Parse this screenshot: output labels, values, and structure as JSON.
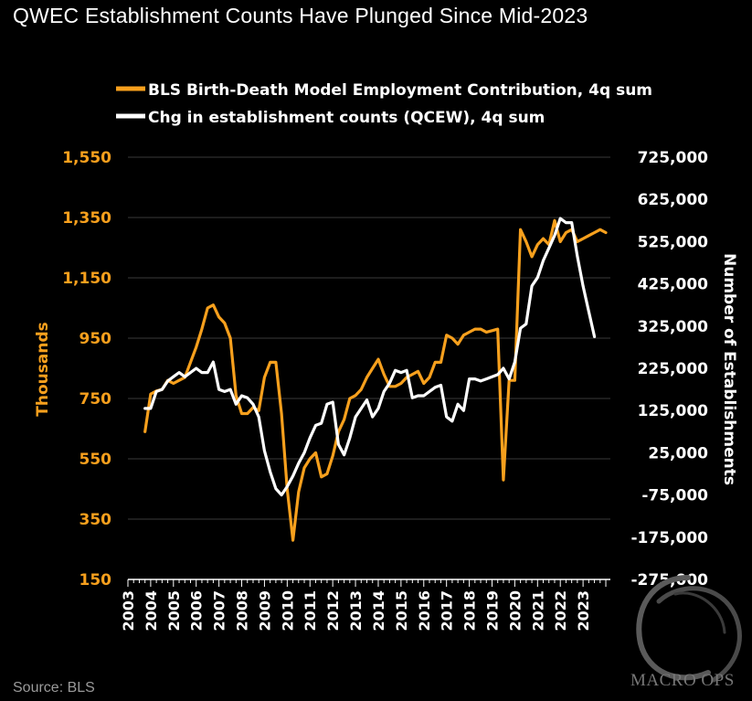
{
  "title": "QWEC Establishment Counts Have Plunged Since Mid-2023",
  "source": "Source: BLS",
  "watermark": "MACRO OPS",
  "colors": {
    "background": "#000000",
    "orange": "#f7a01d",
    "white": "#ffffff",
    "grid": "#3a3a3a"
  },
  "chart_data": {
    "type": "line",
    "title": "QWEC Establishment Counts Have Plunged Since Mid-2023",
    "legend_position": "top",
    "grid": true,
    "x_tick_labels": [
      "2003",
      "2004",
      "2005",
      "2006",
      "2007",
      "2008",
      "2009",
      "2010",
      "2011",
      "2012",
      "2013",
      "2014",
      "2015",
      "2016",
      "2017",
      "2018",
      "2019",
      "2020",
      "2021",
      "2022",
      "2023"
    ],
    "x_range": [
      2003,
      2024.2
    ],
    "y_left": {
      "label": "Thousands",
      "lim": [
        150,
        1550
      ],
      "ticks": [
        150,
        350,
        550,
        750,
        950,
        1150,
        1350,
        1550
      ],
      "tick_labels": [
        "150",
        "350",
        "550",
        "750",
        "950",
        "1,150",
        "1,350",
        "1,550"
      ]
    },
    "y_right": {
      "label": "Number of Establishments",
      "lim": [
        -275000,
        725000
      ],
      "ticks": [
        -275000,
        -175000,
        -75000,
        25000,
        125000,
        225000,
        325000,
        425000,
        525000,
        625000,
        725000
      ],
      "tick_labels": [
        "-275,000",
        "-175,000",
        "-75,000",
        "25,000",
        "125,000",
        "225,000",
        "325,000",
        "425,000",
        "525,000",
        "625,000",
        "725,000"
      ]
    },
    "series": [
      {
        "name": "BLS Birth-Death Model Employment Contribution, 4q sum",
        "color": "#f7a01d",
        "axis": "left",
        "x": [
          2003.75,
          2004.0,
          2004.25,
          2004.5,
          2004.75,
          2005.0,
          2005.25,
          2005.5,
          2005.75,
          2006.0,
          2006.25,
          2006.5,
          2006.75,
          2007.0,
          2007.25,
          2007.5,
          2007.75,
          2008.0,
          2008.25,
          2008.5,
          2008.75,
          2009.0,
          2009.25,
          2009.5,
          2009.75,
          2010.0,
          2010.25,
          2010.5,
          2010.75,
          2011.0,
          2011.25,
          2011.5,
          2011.75,
          2012.0,
          2012.25,
          2012.5,
          2012.75,
          2013.0,
          2013.25,
          2013.5,
          2013.75,
          2014.0,
          2014.25,
          2014.5,
          2014.75,
          2015.0,
          2015.25,
          2015.5,
          2015.75,
          2016.0,
          2016.25,
          2016.5,
          2016.75,
          2017.0,
          2017.25,
          2017.5,
          2017.75,
          2018.0,
          2018.25,
          2018.5,
          2018.75,
          2019.0,
          2019.25,
          2019.5,
          2019.75,
          2020.0,
          2020.25,
          2020.5,
          2020.75,
          2021.0,
          2021.25,
          2021.5,
          2021.75,
          2022.0,
          2022.25,
          2022.5,
          2022.75,
          2023.0,
          2023.25,
          2023.5,
          2023.75,
          2024.0
        ],
        "values": [
          640,
          765,
          775,
          780,
          810,
          800,
          810,
          820,
          870,
          920,
          980,
          1050,
          1060,
          1020,
          1000,
          950,
          760,
          700,
          700,
          720,
          710,
          820,
          870,
          870,
          700,
          450,
          280,
          440,
          520,
          550,
          570,
          490,
          500,
          560,
          640,
          680,
          750,
          760,
          780,
          820,
          850,
          880,
          830,
          790,
          790,
          800,
          820,
          830,
          840,
          800,
          820,
          870,
          870,
          960,
          950,
          930,
          960,
          970,
          980,
          980,
          970,
          975,
          980,
          480,
          810,
          810,
          1310,
          1270,
          1220,
          1260,
          1280,
          1260,
          1340,
          1270,
          1300,
          1310,
          1270,
          1280,
          1290,
          1300,
          1310,
          1300
        ],
        "values_note": "approximate, read from chart in thousands"
      },
      {
        "name": "Chg in establishment counts (QCEW), 4q sum",
        "color": "#ffffff",
        "axis": "right",
        "x": [
          2003.75,
          2004.0,
          2004.25,
          2004.5,
          2004.75,
          2005.0,
          2005.25,
          2005.5,
          2005.75,
          2006.0,
          2006.25,
          2006.5,
          2006.75,
          2007.0,
          2007.25,
          2007.5,
          2007.75,
          2008.0,
          2008.25,
          2008.5,
          2008.75,
          2009.0,
          2009.25,
          2009.5,
          2009.75,
          2010.0,
          2010.25,
          2010.5,
          2010.75,
          2011.0,
          2011.25,
          2011.5,
          2011.75,
          2012.0,
          2012.25,
          2012.5,
          2012.75,
          2013.0,
          2013.25,
          2013.5,
          2013.75,
          2014.0,
          2014.25,
          2014.5,
          2014.75,
          2015.0,
          2015.25,
          2015.5,
          2015.75,
          2016.0,
          2016.25,
          2016.5,
          2016.75,
          2017.0,
          2017.25,
          2017.5,
          2017.75,
          2018.0,
          2018.25,
          2018.5,
          2018.75,
          2019.0,
          2019.25,
          2019.5,
          2019.75,
          2020.0,
          2020.25,
          2020.5,
          2020.75,
          2021.0,
          2021.25,
          2021.5,
          2021.75,
          2022.0,
          2022.25,
          2022.5,
          2022.75,
          2023.0,
          2023.25,
          2023.5
        ],
        "values": [
          130000,
          130000,
          170000,
          175000,
          195000,
          205000,
          215000,
          205000,
          215000,
          225000,
          215000,
          215000,
          240000,
          175000,
          170000,
          175000,
          140000,
          160000,
          155000,
          140000,
          110000,
          30000,
          -20000,
          -60000,
          -75000,
          -55000,
          -30000,
          0,
          25000,
          60000,
          90000,
          95000,
          140000,
          145000,
          45000,
          20000,
          60000,
          110000,
          130000,
          150000,
          110000,
          130000,
          170000,
          190000,
          220000,
          215000,
          220000,
          155000,
          160000,
          160000,
          170000,
          180000,
          185000,
          110000,
          100000,
          140000,
          125000,
          200000,
          200000,
          195000,
          200000,
          205000,
          210000,
          225000,
          200000,
          240000,
          320000,
          330000,
          420000,
          440000,
          480000,
          510000,
          540000,
          580000,
          570000,
          570000,
          490000,
          420000,
          360000,
          300000
        ],
        "values_note": "approximate, read from chart in number of establishments"
      }
    ]
  }
}
